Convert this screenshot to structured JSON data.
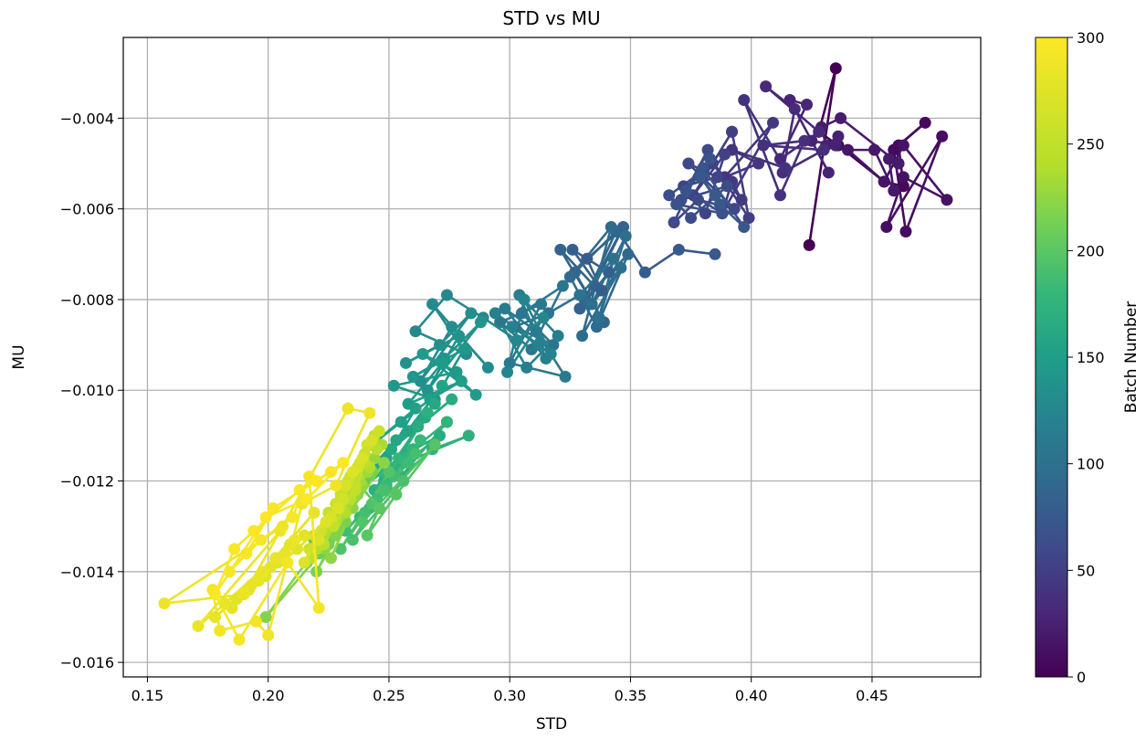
{
  "chart_data": {
    "type": "scatter",
    "title": "STD vs MU",
    "xlabel": "STD",
    "ylabel": "MU",
    "xlim": [
      0.14,
      0.495
    ],
    "ylim": [
      -0.0163,
      -0.00222
    ],
    "xticks": [
      0.15,
      0.2,
      0.25,
      0.3,
      0.35,
      0.4,
      0.45
    ],
    "xtick_labels": [
      "0.15",
      "0.20",
      "0.25",
      "0.30",
      "0.35",
      "0.40",
      "0.45"
    ],
    "yticks": [
      -0.016,
      -0.014,
      -0.012,
      -0.01,
      -0.008,
      -0.006,
      -0.004
    ],
    "ytick_labels": [
      "−0.016",
      "−0.014",
      "−0.012",
      "−0.010",
      "−0.008",
      "−0.006",
      "−0.004"
    ],
    "grid": true,
    "connected_points": true,
    "colormap": "viridis",
    "colorbar": {
      "label": "Batch Number",
      "range": [
        0,
        300
      ],
      "ticks": [
        0,
        50,
        100,
        150,
        200,
        250,
        300
      ],
      "tick_labels": [
        "0",
        "50",
        "100",
        "150",
        "200",
        "250",
        "300"
      ]
    },
    "series": [
      {
        "batch_range": [
          0,
          25
        ],
        "x": [
          0.424,
          0.435,
          0.428,
          0.436,
          0.455,
          0.463,
          0.461,
          0.472,
          0.459,
          0.464,
          0.479,
          0.456,
          0.463,
          0.481,
          0.463,
          0.455,
          0.44,
          0.451,
          0.459,
          0.457,
          0.461,
          0.437,
          0.429,
          0.431,
          0.436,
          0.435
        ],
        "y": [
          -0.0068,
          -0.0029,
          -0.0043,
          -0.0046,
          -0.0054,
          -0.0055,
          -0.0046,
          -0.0041,
          -0.0047,
          -0.0065,
          -0.0044,
          -0.0064,
          -0.0053,
          -0.0058,
          -0.0046,
          -0.0054,
          -0.0047,
          -0.0047,
          -0.0056,
          -0.0049,
          -0.005,
          -0.004,
          -0.0042,
          -0.0046,
          -0.0044,
          -0.0046
        ]
      },
      {
        "batch_range": [
          25,
          50
        ],
        "x": [
          0.435,
          0.425,
          0.432,
          0.416,
          0.423,
          0.412,
          0.428,
          0.406,
          0.418,
          0.413,
          0.43,
          0.405,
          0.422,
          0.412,
          0.397,
          0.414,
          0.392,
          0.403,
          0.389,
          0.409,
          0.388,
          0.392,
          0.396,
          0.383,
          0.399,
          0.392
        ],
        "y": [
          -0.0046,
          -0.0045,
          -0.0052,
          -0.0036,
          -0.0037,
          -0.0049,
          -0.0043,
          -0.0033,
          -0.0038,
          -0.0052,
          -0.0047,
          -0.0046,
          -0.0045,
          -0.0057,
          -0.0036,
          -0.0051,
          -0.0047,
          -0.005,
          -0.0053,
          -0.0041,
          -0.0061,
          -0.0054,
          -0.0058,
          -0.0049,
          -0.0062,
          -0.0043
        ]
      },
      {
        "batch_range": [
          50,
          75
        ],
        "x": [
          0.392,
          0.384,
          0.376,
          0.389,
          0.381,
          0.372,
          0.386,
          0.374,
          0.393,
          0.378,
          0.368,
          0.382,
          0.371,
          0.39,
          0.375,
          0.366,
          0.379,
          0.369,
          0.388,
          0.373,
          0.383,
          0.38,
          0.397,
          0.387,
          0.379,
          0.385
        ],
        "y": [
          -0.0043,
          -0.005,
          -0.0057,
          -0.0048,
          -0.0061,
          -0.0055,
          -0.0053,
          -0.005,
          -0.006,
          -0.0058,
          -0.0063,
          -0.0047,
          -0.0058,
          -0.0055,
          -0.0062,
          -0.0057,
          -0.0052,
          -0.0059,
          -0.0061,
          -0.0056,
          -0.0049,
          -0.0051,
          -0.0064,
          -0.0059,
          -0.0053,
          -0.0057
        ]
      },
      {
        "batch_range": [
          75,
          100
        ],
        "x": [
          0.385,
          0.37,
          0.356,
          0.345,
          0.332,
          0.338,
          0.326,
          0.341,
          0.329,
          0.347,
          0.335,
          0.321,
          0.339,
          0.327,
          0.344,
          0.331,
          0.349,
          0.336,
          0.325,
          0.342,
          0.33,
          0.346,
          0.334,
          0.348,
          0.337,
          0.343
        ],
        "y": [
          -0.007,
          -0.0069,
          -0.0074,
          -0.0065,
          -0.0071,
          -0.0078,
          -0.0069,
          -0.0074,
          -0.0082,
          -0.0064,
          -0.0077,
          -0.0069,
          -0.0085,
          -0.0074,
          -0.0065,
          -0.008,
          -0.007,
          -0.0086,
          -0.0075,
          -0.0064,
          -0.0088,
          -0.0073,
          -0.0081,
          -0.0066,
          -0.0084,
          -0.0071
        ]
      },
      {
        "batch_range": [
          100,
          125
        ],
        "x": [
          0.343,
          0.329,
          0.316,
          0.302,
          0.318,
          0.305,
          0.322,
          0.309,
          0.296,
          0.313,
          0.3,
          0.323,
          0.311,
          0.298,
          0.315,
          0.304,
          0.32,
          0.307,
          0.294,
          0.312,
          0.301,
          0.317,
          0.306,
          0.299,
          0.314,
          0.303
        ],
        "y": [
          -0.0071,
          -0.0079,
          -0.0083,
          -0.0086,
          -0.009,
          -0.0083,
          -0.0077,
          -0.0091,
          -0.0085,
          -0.0081,
          -0.0094,
          -0.0097,
          -0.0087,
          -0.0082,
          -0.0093,
          -0.0079,
          -0.0088,
          -0.0095,
          -0.0083,
          -0.009,
          -0.0086,
          -0.0092,
          -0.008,
          -0.0096,
          -0.0084,
          -0.0089
        ]
      },
      {
        "batch_range": [
          125,
          150
        ],
        "x": [
          0.303,
          0.289,
          0.274,
          0.261,
          0.282,
          0.268,
          0.291,
          0.276,
          0.263,
          0.284,
          0.271,
          0.257,
          0.279,
          0.266,
          0.288,
          0.273,
          0.26,
          0.281,
          0.269,
          0.252,
          0.278,
          0.264,
          0.286,
          0.272,
          0.258,
          0.28
        ],
        "y": [
          -0.0089,
          -0.0084,
          -0.0079,
          -0.0087,
          -0.0092,
          -0.0081,
          -0.0095,
          -0.0086,
          -0.0098,
          -0.0083,
          -0.009,
          -0.0094,
          -0.0088,
          -0.01,
          -0.0085,
          -0.0093,
          -0.0097,
          -0.0091,
          -0.0102,
          -0.0099,
          -0.0096,
          -0.0092,
          -0.0101,
          -0.0094,
          -0.0103,
          -0.0098
        ]
      },
      {
        "batch_range": [
          150,
          175
        ],
        "x": [
          0.28,
          0.267,
          0.255,
          0.243,
          0.261,
          0.249,
          0.272,
          0.258,
          0.246,
          0.269,
          0.253,
          0.241,
          0.265,
          0.251,
          0.276,
          0.262,
          0.248,
          0.271,
          0.257,
          0.244,
          0.266,
          0.252,
          0.283,
          0.268,
          0.255,
          0.274
        ],
        "y": [
          -0.0098,
          -0.0102,
          -0.0107,
          -0.0112,
          -0.0104,
          -0.0115,
          -0.0099,
          -0.0109,
          -0.0116,
          -0.0103,
          -0.0111,
          -0.0118,
          -0.0106,
          -0.0113,
          -0.0102,
          -0.0108,
          -0.012,
          -0.011,
          -0.0114,
          -0.0122,
          -0.0105,
          -0.0117,
          -0.011,
          -0.0113,
          -0.0119,
          -0.0107
        ]
      },
      {
        "batch_range": [
          175,
          200
        ],
        "x": [
          0.274,
          0.26,
          0.247,
          0.236,
          0.254,
          0.242,
          0.263,
          0.249,
          0.238,
          0.258,
          0.245,
          0.232,
          0.252,
          0.24,
          0.261,
          0.248,
          0.235,
          0.256,
          0.243,
          0.23,
          0.25,
          0.239,
          0.269,
          0.253,
          0.241,
          0.246
        ],
        "y": [
          -0.0107,
          -0.0113,
          -0.0118,
          -0.0123,
          -0.0115,
          -0.0126,
          -0.0111,
          -0.0121,
          -0.0128,
          -0.0116,
          -0.0124,
          -0.0131,
          -0.0119,
          -0.0127,
          -0.0114,
          -0.0122,
          -0.0133,
          -0.012,
          -0.0125,
          -0.0135,
          -0.0118,
          -0.0129,
          -0.0112,
          -0.0123,
          -0.0132,
          -0.0126
        ]
      },
      {
        "batch_range": [
          200,
          225
        ],
        "x": [
          0.246,
          0.238,
          0.229,
          0.219,
          0.233,
          0.224,
          0.241,
          0.23,
          0.221,
          0.236,
          0.227,
          0.216,
          0.234,
          0.225,
          0.243,
          0.232,
          0.22,
          0.237,
          0.228,
          0.199,
          0.231,
          0.223,
          0.248,
          0.235,
          0.226,
          0.239
        ],
        "y": [
          -0.0126,
          -0.0121,
          -0.0128,
          -0.0133,
          -0.0124,
          -0.013,
          -0.0119,
          -0.0127,
          -0.0136,
          -0.0122,
          -0.0131,
          -0.0138,
          -0.0125,
          -0.0134,
          -0.0118,
          -0.0129,
          -0.014,
          -0.0123,
          -0.0132,
          -0.015,
          -0.0127,
          -0.0135,
          -0.0116,
          -0.0126,
          -0.0137,
          -0.0121
        ]
      },
      {
        "batch_range": [
          225,
          250
        ],
        "x": [
          0.239,
          0.231,
          0.244,
          0.236,
          0.226,
          0.241,
          0.233,
          0.222,
          0.238,
          0.229,
          0.247,
          0.235,
          0.224,
          0.242,
          0.232,
          0.22,
          0.237,
          0.228,
          0.245,
          0.234,
          0.223,
          0.24,
          0.23,
          0.218,
          0.236,
          0.227
        ],
        "y": [
          -0.0121,
          -0.0126,
          -0.0115,
          -0.0123,
          -0.013,
          -0.0118,
          -0.0125,
          -0.0133,
          -0.012,
          -0.0128,
          -0.0112,
          -0.0122,
          -0.0131,
          -0.0117,
          -0.0127,
          -0.0135,
          -0.0119,
          -0.0129,
          -0.0113,
          -0.0124,
          -0.0134,
          -0.0116,
          -0.0126,
          -0.0137,
          -0.0121,
          -0.013
        ]
      },
      {
        "batch_range": [
          250,
          275
        ],
        "x": [
          0.227,
          0.236,
          0.244,
          0.234,
          0.225,
          0.24,
          0.23,
          0.219,
          0.238,
          0.228,
          0.246,
          0.233,
          0.222,
          0.241,
          0.231,
          0.217,
          0.237,
          0.226,
          0.243,
          0.232,
          0.221,
          0.239,
          0.229,
          0.215,
          0.235,
          0.224
        ],
        "y": [
          -0.013,
          -0.0122,
          -0.011,
          -0.0119,
          -0.0127,
          -0.0114,
          -0.0123,
          -0.0132,
          -0.0116,
          -0.0125,
          -0.0109,
          -0.012,
          -0.0131,
          -0.0112,
          -0.0124,
          -0.0135,
          -0.0117,
          -0.0128,
          -0.0111,
          -0.0121,
          -0.0133,
          -0.0115,
          -0.0126,
          -0.0138,
          -0.0118,
          -0.0129
        ]
      },
      {
        "batch_range": [
          275,
          300
        ],
        "x": [
          0.224,
          0.212,
          0.199,
          0.187,
          0.204,
          0.192,
          0.215,
          0.201,
          0.185,
          0.209,
          0.196,
          0.178,
          0.207,
          0.193,
          0.219,
          0.203,
          0.182,
          0.211,
          0.198,
          0.171,
          0.205,
          0.19,
          0.157,
          0.206,
          0.233,
          0.242,
          0.228,
          0.214,
          0.2,
          0.195,
          0.18,
          0.177,
          0.188,
          0.208,
          0.221,
          0.217,
          0.21,
          0.197,
          0.184,
          0.191,
          0.202,
          0.226,
          0.213,
          0.194,
          0.186,
          0.178,
          0.199,
          0.216,
          0.231,
          0.22
        ],
        "y": [
          -0.0129,
          -0.0135,
          -0.0141,
          -0.0146,
          -0.0138,
          -0.0144,
          -0.0132,
          -0.0139,
          -0.0148,
          -0.0134,
          -0.0142,
          -0.015,
          -0.0136,
          -0.0143,
          -0.0127,
          -0.0137,
          -0.0147,
          -0.0133,
          -0.014,
          -0.0152,
          -0.0131,
          -0.0145,
          -0.0147,
          -0.013,
          -0.0104,
          -0.0105,
          -0.0121,
          -0.0125,
          -0.0154,
          -0.0151,
          -0.0153,
          -0.0144,
          -0.0155,
          -0.0138,
          -0.0148,
          -0.0119,
          -0.0128,
          -0.0133,
          -0.014,
          -0.0136,
          -0.0126,
          -0.0118,
          -0.0122,
          -0.0131,
          -0.0135,
          -0.0145,
          -0.0128,
          -0.0124,
          -0.0116,
          -0.012
        ]
      }
    ]
  }
}
